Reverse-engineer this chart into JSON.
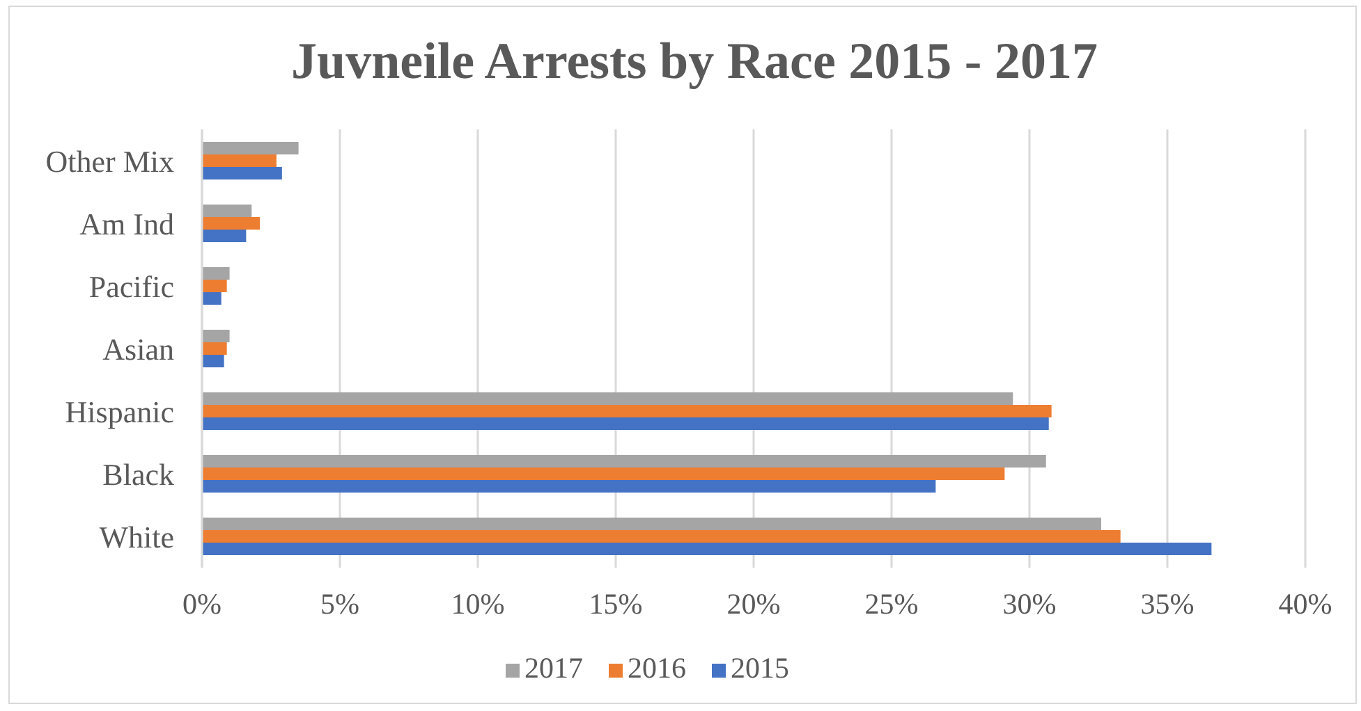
{
  "chart_data": {
    "type": "bar",
    "orientation": "horizontal",
    "title": "Juvneile Arrests by Race 2015 - 2017",
    "categories": [
      "Other Mix",
      "Am Ind",
      "Pacific",
      "Asian",
      "Hispanic",
      "Black",
      "White"
    ],
    "series": [
      {
        "name": "2017",
        "color": "#a5a5a5",
        "values": [
          3.5,
          1.8,
          1.0,
          1.0,
          29.4,
          30.6,
          32.6
        ]
      },
      {
        "name": "2016",
        "color": "#ed7d31",
        "values": [
          2.7,
          2.1,
          0.9,
          0.9,
          30.8,
          29.1,
          33.3
        ]
      },
      {
        "name": "2015",
        "color": "#4472c4",
        "values": [
          2.9,
          1.6,
          0.7,
          0.8,
          30.7,
          26.6,
          36.6
        ]
      }
    ],
    "xlim": [
      0,
      40
    ],
    "xticks": [
      {
        "value": 0,
        "label": "0%"
      },
      {
        "value": 5,
        "label": "5%"
      },
      {
        "value": 10,
        "label": "10%"
      },
      {
        "value": 15,
        "label": "15%"
      },
      {
        "value": 20,
        "label": "20%"
      },
      {
        "value": 25,
        "label": "25%"
      },
      {
        "value": 30,
        "label": "30%"
      },
      {
        "value": 35,
        "label": "35%"
      },
      {
        "value": 40,
        "label": "40%"
      }
    ],
    "grid": "x",
    "legend": "bottom"
  }
}
